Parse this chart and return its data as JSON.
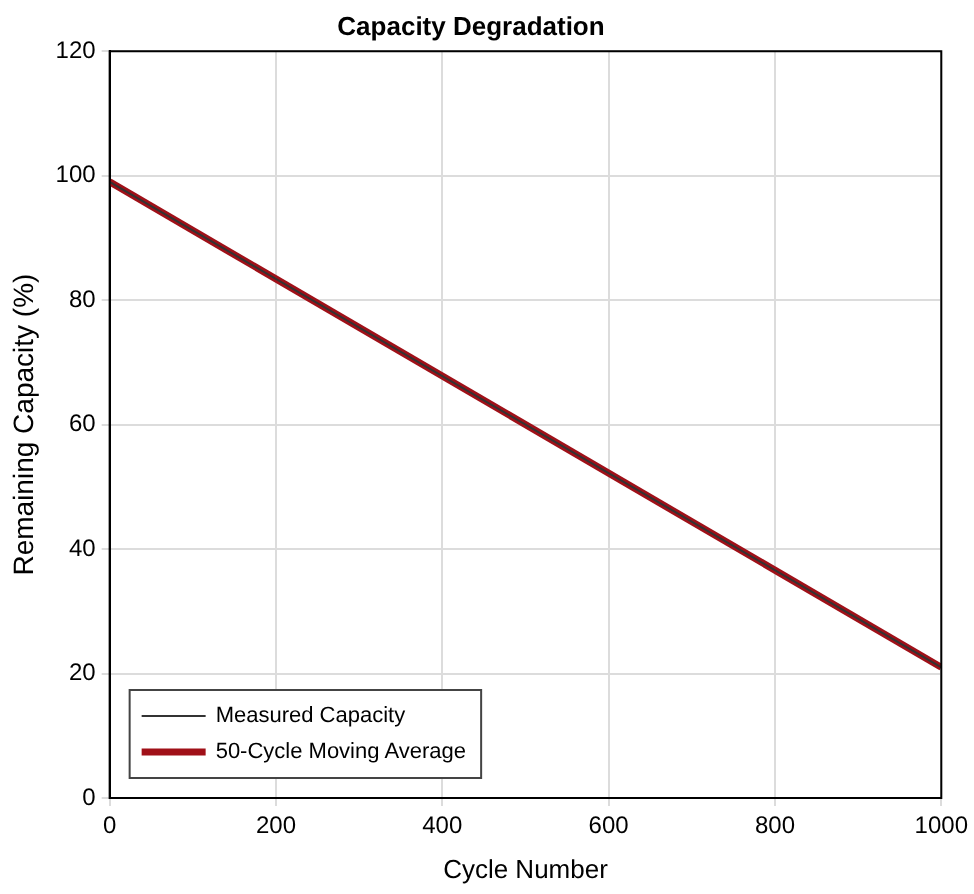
{
  "chart_data": {
    "type": "line",
    "title": "Capacity Degradation",
    "xlabel": "Cycle Number",
    "ylabel": "Remaining Capacity (%)",
    "x": [
      0,
      1000
    ],
    "series": [
      {
        "name": "Measured Capacity",
        "color": "#333333",
        "values": [
          99,
          21
        ]
      },
      {
        "name": "50-Cycle Moving Average",
        "color": "#a01018",
        "values": [
          99,
          21
        ]
      }
    ],
    "xlim": [
      0,
      1000
    ],
    "xticks": [
      0,
      200,
      400,
      600,
      800,
      1000
    ],
    "ylim": [
      0,
      120
    ],
    "yticks": [
      0,
      20,
      40,
      60,
      80,
      100,
      120
    ],
    "grid": true,
    "legend": "bottom left",
    "marker": "none",
    "line_style": "solid"
  }
}
